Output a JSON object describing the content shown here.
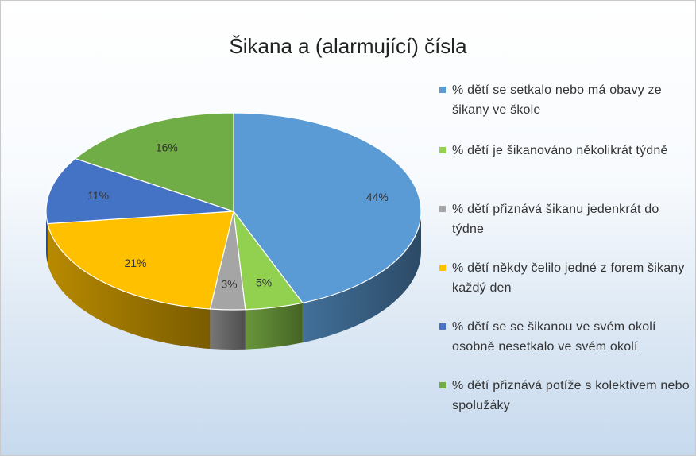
{
  "chart_data": {
    "type": "pie",
    "title": "Šikana a (alarmující) čísla",
    "categories": [
      "% dětí se setkalo nebo má obavy ze šikany ve škole",
      "% dětí je šikanováno několikrát týdně",
      "% dětí přiznává šikanu jedenkrát do týdne",
      "% dětí někdy čelilo jedné z forem šikany každý den",
      "% dětí se se šikanou ve svém okolí osobně nesetkalo ve svém okolí",
      "% dětí přiznává potíže s kolektivem nebo spolužáky"
    ],
    "values": [
      44,
      5,
      3,
      21,
      11,
      16
    ],
    "data_labels": [
      "44%",
      "5%",
      "3%",
      "21%",
      "11%",
      "16%"
    ],
    "colors": [
      "#5b9bd5",
      "#92d050",
      "#a5a5a5",
      "#ffc000",
      "#4472c4",
      "#70ad47"
    ],
    "legend_position": "right",
    "style": "3d"
  }
}
